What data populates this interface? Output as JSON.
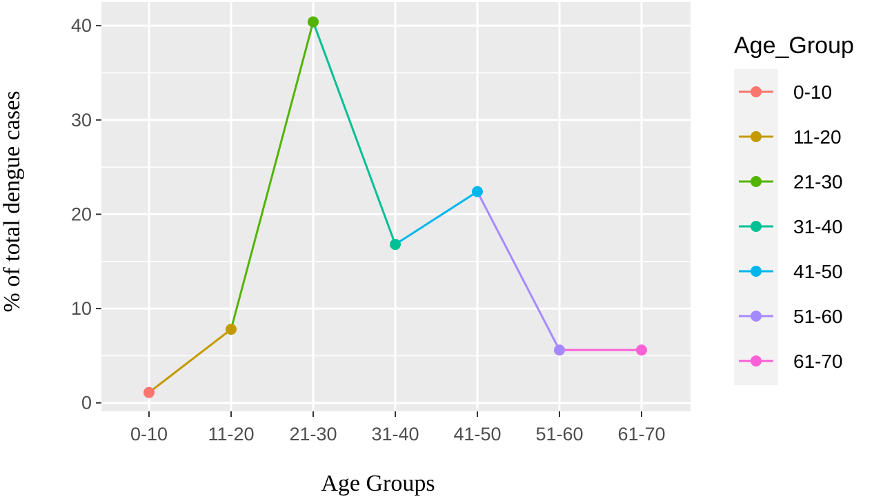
{
  "chart_data": {
    "type": "line",
    "categories": [
      "0-10",
      "11-20",
      "21-30",
      "31-40",
      "41-50",
      "51-60",
      "61-70"
    ],
    "values": [
      1.1,
      7.8,
      40.4,
      16.8,
      22.4,
      5.6,
      5.6
    ],
    "colors": [
      "#F8766D",
      "#C49A00",
      "#53B400",
      "#00C094",
      "#00B6EB",
      "#A58AFF",
      "#FB61D7"
    ],
    "xlabel": "Age Groups",
    "ylabel": "% of total dengue cases",
    "ylim": [
      -0.9,
      42.5
    ],
    "yticks": [
      0,
      10,
      20,
      30,
      40
    ],
    "ytick_labels": [
      "0",
      "10",
      "20",
      "30",
      "40"
    ],
    "grid": true,
    "legend": {
      "title": "Age_Group",
      "position": "right",
      "entries": [
        "0-10",
        "11-20",
        "21-30",
        "31-40",
        "41-50",
        "51-60",
        "61-70"
      ]
    }
  }
}
